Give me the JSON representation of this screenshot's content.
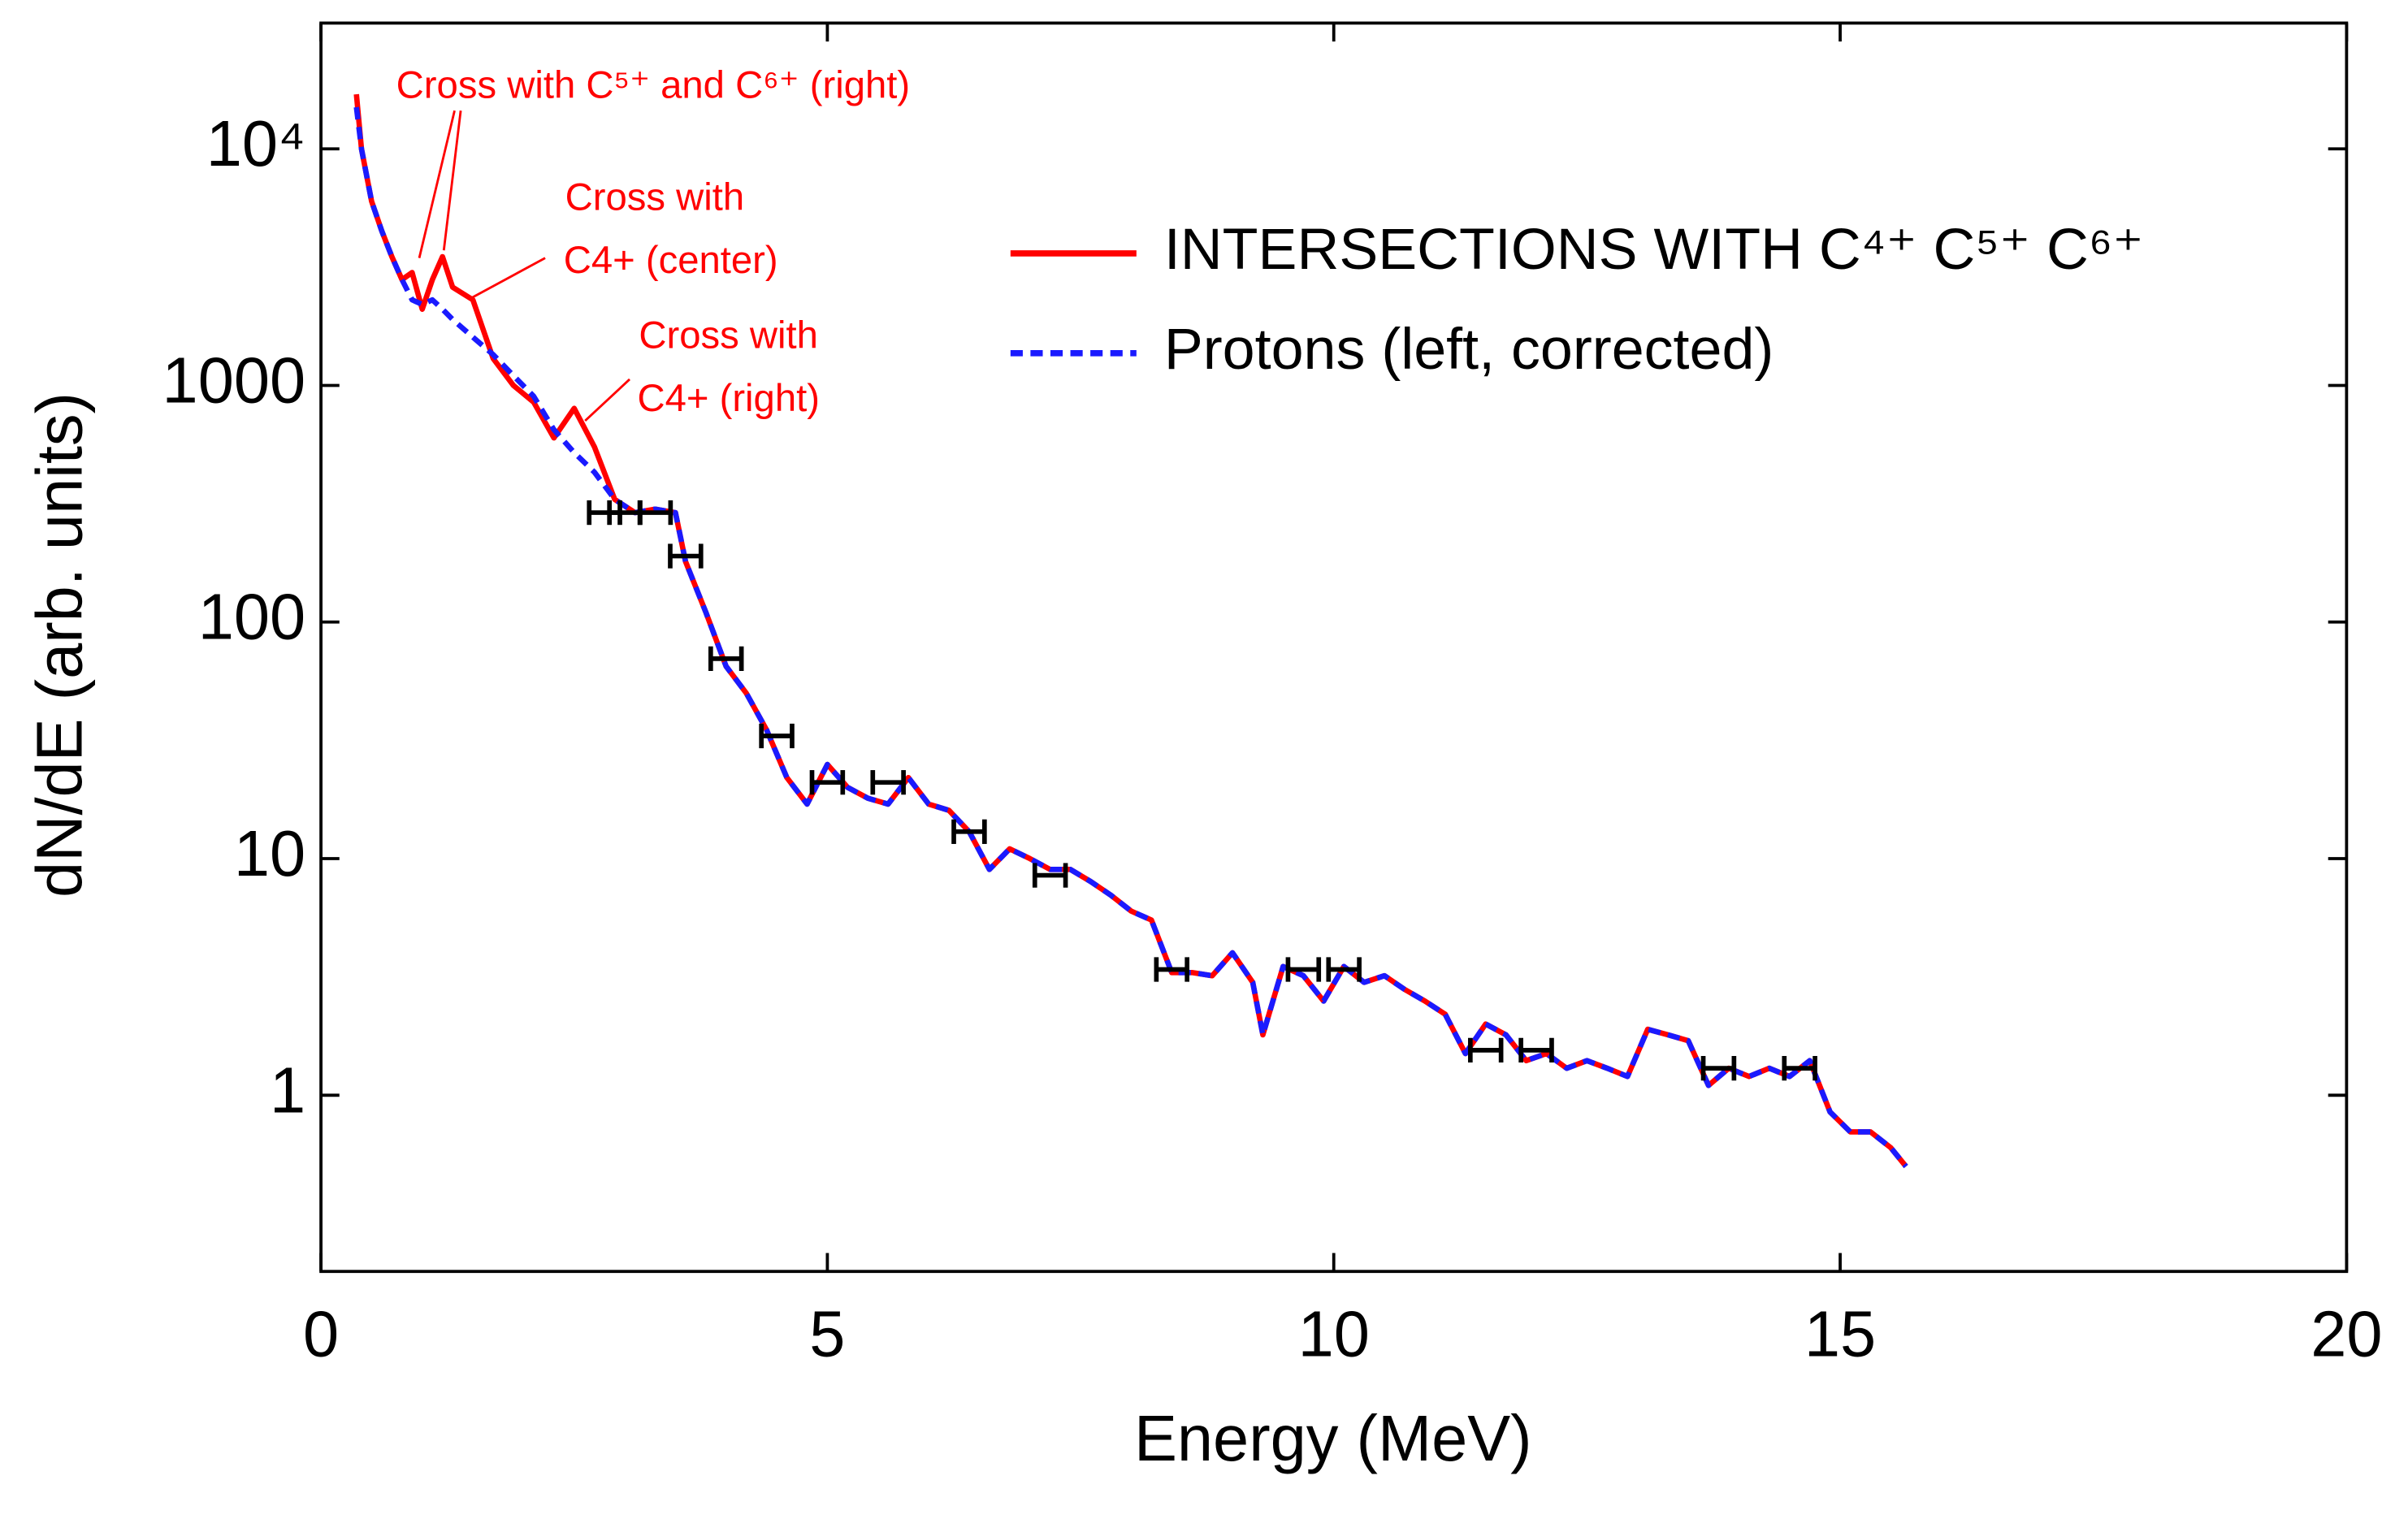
{
  "chart_data": {
    "type": "line",
    "xlabel": "Energy (MeV)",
    "ylabel": "dN/dE (arb. units)",
    "xlim": [
      0,
      20
    ],
    "xticks": [
      0,
      5,
      10,
      15,
      20
    ],
    "ylim": [
      0.18,
      34000
    ],
    "log_y": true,
    "yticks": [
      1,
      10,
      100,
      1000,
      {
        "value": 10000,
        "label": "10⁴"
      }
    ],
    "legend": "upper right",
    "x": [
      0.35,
      0.4,
      0.5,
      0.6,
      0.7,
      0.8,
      0.9,
      1.0,
      1.1,
      1.2,
      1.3,
      1.5,
      1.7,
      1.9,
      2.1,
      2.3,
      2.5,
      2.7,
      2.9,
      3.1,
      3.3,
      3.5,
      3.6,
      3.8,
      4.0,
      4.2,
      4.4,
      4.6,
      4.8,
      5.0,
      5.2,
      5.4,
      5.6,
      5.8,
      6.0,
      6.2,
      6.4,
      6.6,
      6.8,
      7.0,
      7.2,
      7.4,
      7.6,
      7.8,
      8.0,
      8.2,
      8.4,
      8.6,
      8.8,
      9.0,
      9.2,
      9.3,
      9.5,
      9.7,
      9.9,
      10.1,
      10.3,
      10.5,
      10.7,
      10.9,
      11.1,
      11.3,
      11.5,
      11.7,
      11.9,
      12.1,
      12.3,
      12.5,
      12.7,
      12.9,
      13.1,
      13.3,
      13.5,
      13.7,
      13.9,
      14.1,
      14.3,
      14.5,
      14.7,
      14.9,
      15.1,
      15.3,
      15.5,
      15.65
    ],
    "series": [
      {
        "name": "INTERSECTIONS WITH C⁴⁺ C⁵⁺ C⁶⁺",
        "color": "#ff0000",
        "dash": false,
        "values": [
          17000,
          10000,
          6000,
          4500,
          3500,
          2800,
          3000,
          2100,
          2800,
          3500,
          2600,
          2300,
          1300,
          1000,
          850,
          600,
          800,
          550,
          330,
          290,
          300,
          290,
          180,
          110,
          65,
          50,
          35,
          22,
          17,
          25,
          20,
          18,
          17,
          22,
          17,
          16,
          13,
          9,
          11,
          10,
          9,
          9,
          8,
          7,
          6,
          5.5,
          3.3,
          3.3,
          3.2,
          4,
          3,
          1.8,
          3.5,
          3.2,
          2.5,
          3.5,
          3,
          3.2,
          2.8,
          2.5,
          2.2,
          1.5,
          2.0,
          1.8,
          1.4,
          1.5,
          1.3,
          1.4,
          1.3,
          1.2,
          1.9,
          1.8,
          1.7,
          1.1,
          1.3,
          1.2,
          1.3,
          1.2,
          1.4,
          0.85,
          0.7,
          0.7,
          0.6,
          0.5
        ]
      },
      {
        "name": "Protons (left, corrected)",
        "color": "#1a1aff",
        "dash": true,
        "values": [
          15000,
          10000,
          6000,
          4500,
          3500,
          2800,
          2300,
          2200,
          2300,
          2100,
          1900,
          1600,
          1350,
          1100,
          900,
          650,
          520,
          430,
          330,
          290,
          300,
          290,
          180,
          110,
          65,
          50,
          35,
          22,
          17,
          25,
          20,
          18,
          17,
          22,
          17,
          16,
          13,
          9,
          11,
          10,
          9,
          9,
          8,
          7,
          6,
          5.5,
          3.3,
          3.3,
          3.2,
          4,
          3,
          1.8,
          3.5,
          3.2,
          2.5,
          3.5,
          3,
          3.2,
          2.8,
          2.5,
          2.2,
          1.5,
          2.0,
          1.8,
          1.4,
          1.5,
          1.3,
          1.4,
          1.3,
          1.2,
          1.9,
          1.8,
          1.7,
          1.1,
          1.3,
          1.2,
          1.3,
          1.2,
          1.4,
          0.85,
          0.7,
          0.7,
          0.6,
          0.5
        ]
      }
    ],
    "markers": {
      "color": "#000000",
      "x": [
        2.8,
        3.0,
        3.3,
        3.6,
        4.0,
        4.5,
        5.0,
        5.6,
        6.4,
        7.2,
        8.4,
        9.7,
        10.1,
        11.5,
        12.0,
        13.8,
        14.6
      ],
      "y": [
        290,
        290,
        290,
        190,
        70,
        33,
        21,
        21,
        13,
        8.5,
        3.4,
        3.4,
        3.4,
        1.55,
        1.55,
        1.3,
        1.3
      ]
    },
    "annotations": [
      {
        "lines": [
          "Cross with C⁵⁺ and C⁶⁺  (right)"
        ]
      },
      {
        "lines": [
          "Cross with",
          "C4+ (center)"
        ]
      },
      {
        "lines": [
          "Cross with",
          "C4+ (right)"
        ]
      }
    ]
  }
}
